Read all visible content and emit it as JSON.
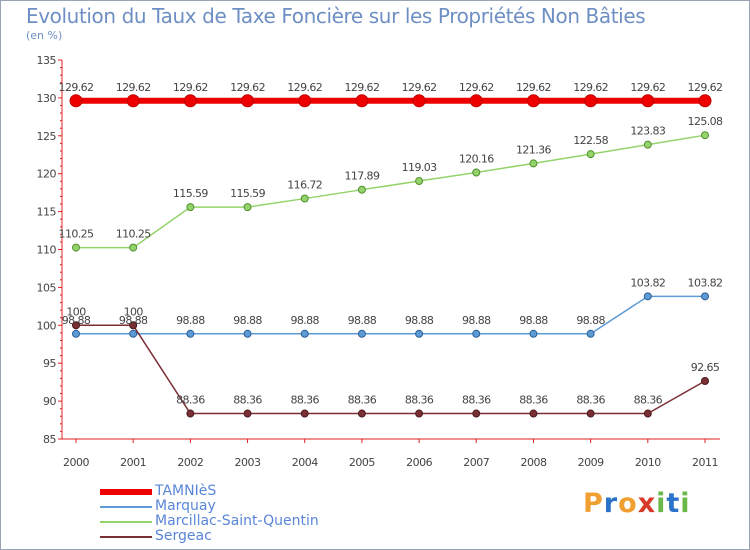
{
  "title": "Evolution du Taux de Taxe Foncière sur les Propriétés Non Bâties",
  "unit_label": "(en %)",
  "logo": {
    "text": "Proxiti",
    "colors": [
      "#f0a030",
      "#2a73c8",
      "#f0a030",
      "#d83a2a",
      "#6bb84a",
      "#2a73c8",
      "#6bb84a"
    ]
  },
  "chart_data": {
    "type": "line",
    "title": "Evolution du Taux de Taxe Foncière sur les Propriétés Non Bâties",
    "ylabel": "(en %)",
    "xlabel": "",
    "ylim": [
      85,
      135
    ],
    "yticks": [
      85,
      90,
      95,
      100,
      105,
      110,
      115,
      120,
      125,
      130,
      135
    ],
    "x": [
      "2000",
      "2001",
      "2002",
      "2003",
      "2004",
      "2005",
      "2006",
      "2007",
      "2008",
      "2009",
      "2010",
      "2011"
    ],
    "grid": false,
    "legend": "bottom-left",
    "series": [
      {
        "name": "TAMNIèS",
        "color": "#ee0000",
        "values": [
          129.62,
          129.62,
          129.62,
          129.62,
          129.62,
          129.62,
          129.62,
          129.62,
          129.62,
          129.62,
          129.62,
          129.62
        ],
        "labels": [
          "129.62",
          "129.62",
          "129.62",
          "129.62",
          "129.62",
          "129.62",
          "129.62",
          "129.62",
          "129.62",
          "129.62",
          "129.62",
          "129.62"
        ]
      },
      {
        "name": "Marquay",
        "color": "#5d9bd6",
        "values": [
          98.88,
          98.88,
          98.88,
          98.88,
          98.88,
          98.88,
          98.88,
          98.88,
          98.88,
          98.88,
          103.82,
          103.82
        ],
        "labels": [
          "98.88",
          "98.88",
          "98.88",
          "98.88",
          "98.88",
          "98.88",
          "98.88",
          "98.88",
          "98.88",
          "98.88",
          "103.82",
          "103.82"
        ]
      },
      {
        "name": "Marcillac-Saint-Quentin",
        "color": "#94d36a",
        "values": [
          110.25,
          110.25,
          115.59,
          115.59,
          116.72,
          117.89,
          119.03,
          120.16,
          121.36,
          122.58,
          123.83,
          125.08
        ],
        "labels": [
          "110.25",
          "110.25",
          "115.59",
          "115.59",
          "116.72",
          "117.89",
          "119.03",
          "120.16",
          "121.36",
          "122.58",
          "123.83",
          "125.08"
        ]
      },
      {
        "name": "Sergeac",
        "color": "#7a2f35",
        "values": [
          100,
          100,
          88.36,
          88.36,
          88.36,
          88.36,
          88.36,
          88.36,
          88.36,
          88.36,
          88.36,
          92.65
        ],
        "labels": [
          "100",
          "100",
          "88.36",
          "88.36",
          "88.36",
          "88.36",
          "88.36",
          "88.36",
          "88.36",
          "88.36",
          "88.36",
          "92.65"
        ]
      }
    ]
  }
}
